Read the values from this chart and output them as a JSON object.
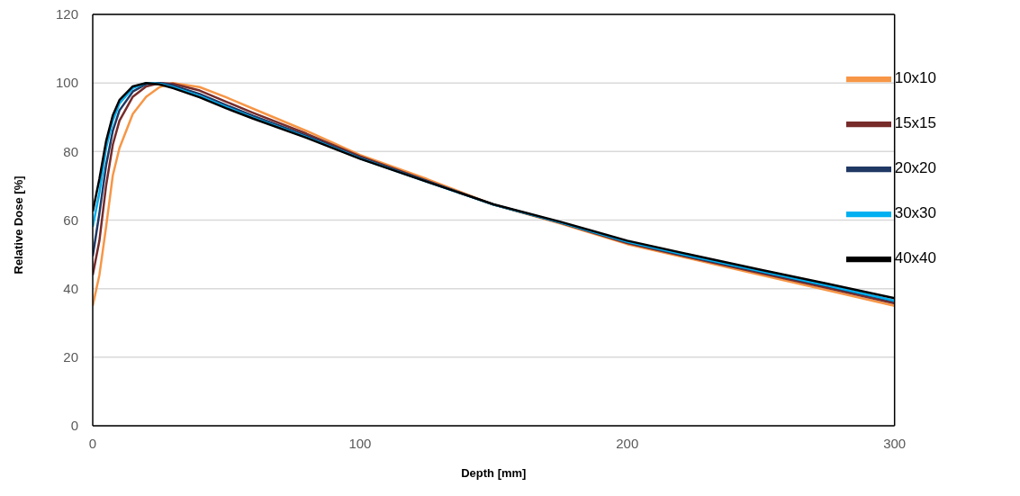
{
  "chart_data": {
    "type": "line",
    "xlabel": "Depth [mm]",
    "ylabel": "Relative Dose [%]",
    "x": [
      0,
      2.5,
      5,
      7.5,
      10,
      15,
      20,
      25,
      30,
      40,
      50,
      60,
      80,
      100,
      125,
      150,
      175,
      200,
      225,
      250,
      275,
      300
    ],
    "series": [
      {
        "name": "10x10",
        "color": "#f79646",
        "values": [
          35,
          44,
          58,
          73,
          81,
          91,
          96,
          98.8,
          100,
          98.8,
          95.8,
          92.5,
          86,
          79,
          72,
          64.5,
          59,
          53,
          48.5,
          44,
          39.5,
          35
        ]
      },
      {
        "name": "15x15",
        "color": "#772c2a",
        "values": [
          44,
          54,
          70,
          82,
          89,
          96,
          99,
          100,
          99.8,
          97.8,
          94.5,
          91.3,
          85.2,
          78.6,
          71.5,
          64.5,
          59.2,
          53.3,
          48.8,
          44.5,
          40.2,
          35.7
        ]
      },
      {
        "name": "20x20",
        "color": "#1f3864",
        "values": [
          49.5,
          62,
          76,
          86,
          92,
          97.5,
          99.7,
          100,
          99.3,
          96.8,
          93.5,
          90.4,
          84.6,
          78.2,
          71.3,
          64.5,
          59.3,
          53.6,
          49.1,
          44.9,
          40.7,
          36.3
        ]
      },
      {
        "name": "30x30",
        "color": "#00b0f0",
        "values": [
          58,
          68,
          81,
          89,
          94,
          98.5,
          100,
          99.8,
          98.8,
          96.2,
          93,
          89.9,
          84.2,
          78,
          71.2,
          64.5,
          59.3,
          53.7,
          49.3,
          45.1,
          40.9,
          36.5
        ]
      },
      {
        "name": "40x40",
        "color": "#000000",
        "values": [
          62.5,
          72,
          83,
          90.5,
          95,
          99,
          100,
          99.6,
          98.5,
          95.8,
          92.6,
          89.6,
          84,
          77.9,
          71.2,
          64.6,
          59.5,
          54,
          49.7,
          45.5,
          41.4,
          37.2
        ]
      }
    ],
    "xlim": [
      0,
      300
    ],
    "xticks": [
      0,
      100,
      200,
      300
    ],
    "ylim": [
      0,
      120
    ],
    "yticks": [
      0,
      20,
      40,
      60,
      80,
      100,
      120
    ],
    "grid": "y",
    "legend": "top right",
    "marker": "none",
    "line_style": "solid"
  }
}
